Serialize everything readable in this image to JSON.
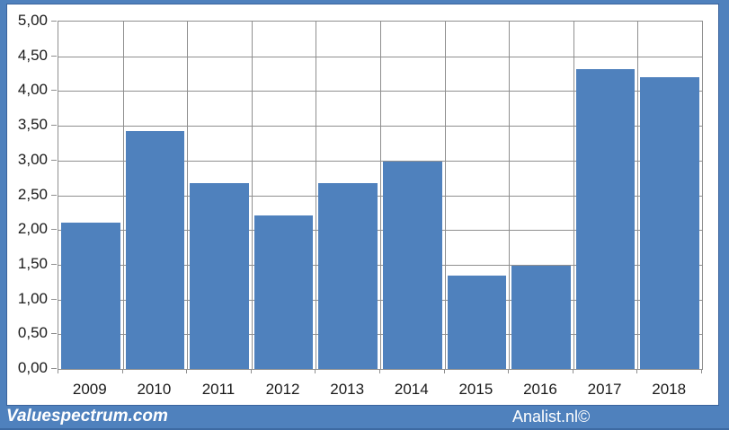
{
  "chart_data": {
    "type": "bar",
    "title": "",
    "xlabel": "",
    "ylabel": "",
    "categories": [
      "2009",
      "2010",
      "2011",
      "2012",
      "2013",
      "2014",
      "2015",
      "2016",
      "2017",
      "2018"
    ],
    "values": [
      2.1,
      3.42,
      2.68,
      2.21,
      2.67,
      2.98,
      1.34,
      1.48,
      4.32,
      4.2
    ],
    "ylim": [
      0,
      5
    ],
    "y_tick_step": 0.5,
    "y_tick_labels": [
      "0,00",
      "0,50",
      "1,00",
      "1,50",
      "2,00",
      "2,50",
      "3,00",
      "3,50",
      "4,00",
      "4,50",
      "5,00"
    ],
    "grid": true,
    "legend": false,
    "bar_color": "#4f81bd"
  },
  "footer": {
    "brand": "Valuespectrum.com",
    "credit": "Analist.nl©"
  },
  "colors": {
    "frame_blue": "#4f81bd",
    "footer_blue": "#4f81bd",
    "footer_edge": "#3d6aa3",
    "gridline_gray": "#8f8f8f",
    "text_dark": "#1a1a1a",
    "background": "#ffffff"
  }
}
